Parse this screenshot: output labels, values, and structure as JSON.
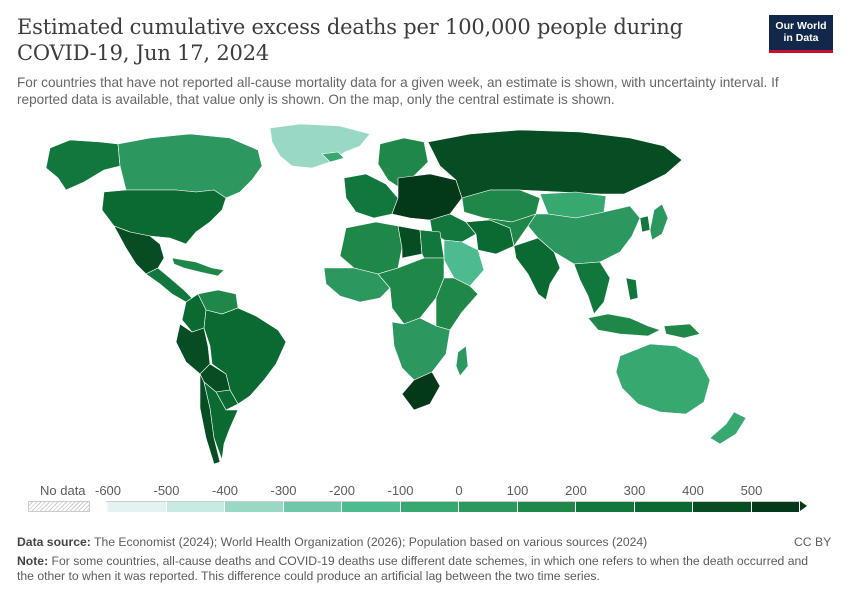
{
  "title": "Estimated cumulative excess deaths per 100,000 people during COVID-19, Jun 17, 2024",
  "subtitle": "For countries that have not reported all-cause mortality data for a given week, an estimate is shown, with uncertainty interval. If reported data is available, that value only is shown. On the map, only the central estimate is shown.",
  "logo": {
    "line1": "Our World",
    "line2": "in Data"
  },
  "legend": {
    "no_data_label": "No data",
    "ticks": [
      "-600",
      "-500",
      "-400",
      "-300",
      "-200",
      "-100",
      "0",
      "100",
      "200",
      "300",
      "400",
      "500"
    ],
    "colors": [
      "#f4fbf9",
      "#e2f3f1",
      "#c7ebe3",
      "#9ad8c6",
      "#6ec7a8",
      "#4dba8f",
      "#37a86f",
      "#2c975f",
      "#1f8748",
      "#11773c",
      "#0a6a32",
      "#064d24",
      "#033818"
    ],
    "nodata_color": "#dddddd"
  },
  "footer": {
    "source_label": "Data source:",
    "source_text": " The Economist (2024); World Health Organization (2026); Population based on various sources (2024)",
    "license": "CC BY",
    "note_label": "Note:",
    "note_text": " For some countries, all-cause deaths and COVID-19 deaths use different date schemes, in which one refers to when the death occurred and the other to when it was reported. This difference could produce an artificial lag between the two time series."
  },
  "map": {
    "regions": [
      {
        "name": "Greenland",
        "color": "#9ad8c6"
      },
      {
        "name": "Canada",
        "color": "#2c975f"
      },
      {
        "name": "Alaska",
        "color": "#11773c"
      },
      {
        "name": "United States",
        "color": "#0a6a32"
      },
      {
        "name": "Mexico",
        "color": "#064d24"
      },
      {
        "name": "Central America",
        "color": "#11773c"
      },
      {
        "name": "Caribbean",
        "color": "#1f8748"
      },
      {
        "name": "Colombia",
        "color": "#0a6a32"
      },
      {
        "name": "Venezuela",
        "color": "#1f8748"
      },
      {
        "name": "Peru",
        "color": "#064d24"
      },
      {
        "name": "Brazil",
        "color": "#0a6a32"
      },
      {
        "name": "Bolivia",
        "color": "#064d24"
      },
      {
        "name": "Paraguay",
        "color": "#0a6a32"
      },
      {
        "name": "Argentina",
        "color": "#0a6a32"
      },
      {
        "name": "Chile",
        "color": "#064d24"
      },
      {
        "name": "Iceland",
        "color": "#37a86f"
      },
      {
        "name": "Scandinavia",
        "color": "#1f8748"
      },
      {
        "name": "Western Europe",
        "color": "#11773c"
      },
      {
        "name": "Eastern Europe",
        "color": "#033818"
      },
      {
        "name": "Russia",
        "color": "#064d24"
      },
      {
        "name": "Kazakhstan",
        "color": "#1f8748"
      },
      {
        "name": "Mongolia",
        "color": "#37a86f"
      },
      {
        "name": "China",
        "color": "#2c975f"
      },
      {
        "name": "Japan",
        "color": "#2c975f"
      },
      {
        "name": "Korea",
        "color": "#11773c"
      },
      {
        "name": "Middle East",
        "color": "#11773c"
      },
      {
        "name": "Saudi Arabia",
        "color": "#4dba8f"
      },
      {
        "name": "Iran",
        "color": "#0a6a32"
      },
      {
        "name": "Central Asia",
        "color": "#1f8748"
      },
      {
        "name": "India",
        "color": "#0a6a32"
      },
      {
        "name": "Southeast Asia",
        "color": "#11773c"
      },
      {
        "name": "Indonesia",
        "color": "#1f8748"
      },
      {
        "name": "Philippines",
        "color": "#11773c"
      },
      {
        "name": "Papua New Guinea",
        "color": "#1f8748"
      },
      {
        "name": "Australia",
        "color": "#37a86f"
      },
      {
        "name": "New Zealand",
        "color": "#37a86f"
      },
      {
        "name": "North Africa",
        "color": "#1f8748"
      },
      {
        "name": "Libya",
        "color": "#064d24"
      },
      {
        "name": "Egypt",
        "color": "#11773c"
      },
      {
        "name": "West Africa",
        "color": "#2c975f"
      },
      {
        "name": "Central Africa",
        "color": "#1f8748"
      },
      {
        "name": "East Africa",
        "color": "#1f8748"
      },
      {
        "name": "Southern Africa",
        "color": "#2c975f"
      },
      {
        "name": "South Africa",
        "color": "#033818"
      },
      {
        "name": "Madagascar",
        "color": "#2c975f"
      }
    ]
  }
}
